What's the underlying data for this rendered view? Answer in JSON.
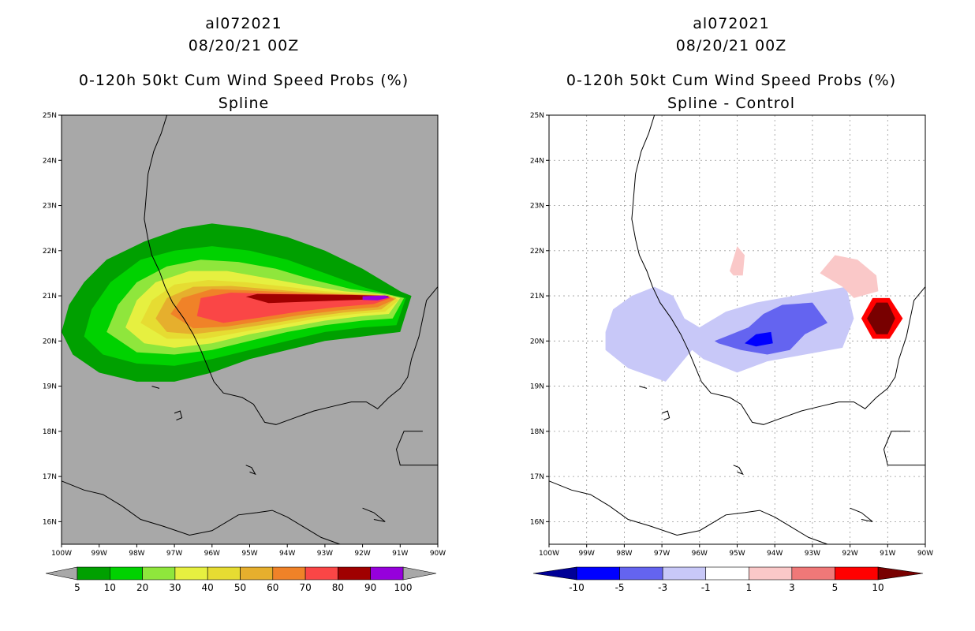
{
  "panels": [
    {
      "storm_id": "al072021",
      "datetime": "08/20/21 00Z",
      "product": "0-120h 50kt Cum Wind Speed Probs (%)",
      "subtitle": "Spline"
    },
    {
      "storm_id": "al072021",
      "datetime": "08/20/21 00Z",
      "product": "0-120h 50kt Cum Wind Speed Probs (%)",
      "subtitle": "Spline - Control"
    }
  ],
  "chart_data": [
    {
      "type": "heatmap",
      "title": "0-120h 50kt Cum Wind Speed Probs (%)",
      "subtitle": "Spline",
      "x_range": [
        -100,
        -90
      ],
      "y_range": [
        15.5,
        25
      ],
      "x_ticks": [
        "100W",
        "99W",
        "98W",
        "97W",
        "96W",
        "95W",
        "94W",
        "93W",
        "92W",
        "91W",
        "90W"
      ],
      "y_ticks": [
        "16N",
        "17N",
        "18N",
        "19N",
        "20N",
        "21N",
        "22N",
        "23N",
        "24N",
        "25N"
      ],
      "background_color": "#a8a8a8",
      "colorbar": {
        "labels": [
          "5",
          "10",
          "20",
          "30",
          "40",
          "50",
          "60",
          "70",
          "80",
          "90",
          "100"
        ],
        "colors": [
          "#00a000",
          "#00d200",
          "#8fe63c",
          "#e6f040",
          "#e6dc32",
          "#e6af2d",
          "#f08228",
          "#fa4646",
          "#a00000",
          "#9600dc"
        ]
      },
      "contours": [
        {
          "level": 5,
          "color": "#00a000",
          "points": [
            [
              -100.0,
              20.2
            ],
            [
              -99.8,
              20.8
            ],
            [
              -99.4,
              21.3
            ],
            [
              -98.8,
              21.8
            ],
            [
              -97.8,
              22.2
            ],
            [
              -96.8,
              22.5
            ],
            [
              -96.0,
              22.6
            ],
            [
              -95.0,
              22.5
            ],
            [
              -94.0,
              22.3
            ],
            [
              -93.0,
              22.0
            ],
            [
              -92.0,
              21.6
            ],
            [
              -91.0,
              21.1
            ],
            [
              -90.7,
              21.0
            ],
            [
              -91.0,
              20.2
            ],
            [
              -92.0,
              20.1
            ],
            [
              -93.0,
              20.0
            ],
            [
              -94.0,
              19.8
            ],
            [
              -95.0,
              19.6
            ],
            [
              -96.0,
              19.3
            ],
            [
              -97.0,
              19.1
            ],
            [
              -98.0,
              19.1
            ],
            [
              -99.0,
              19.3
            ],
            [
              -99.7,
              19.7
            ]
          ]
        },
        {
          "level": 10,
          "color": "#00d200",
          "points": [
            [
              -99.4,
              20.1
            ],
            [
              -99.2,
              20.7
            ],
            [
              -98.7,
              21.3
            ],
            [
              -97.9,
              21.8
            ],
            [
              -97.0,
              22.0
            ],
            [
              -96.0,
              22.1
            ],
            [
              -95.0,
              22.0
            ],
            [
              -94.0,
              21.8
            ],
            [
              -93.0,
              21.5
            ],
            [
              -92.0,
              21.2
            ],
            [
              -91.2,
              21.0
            ],
            [
              -90.85,
              20.95
            ],
            [
              -91.1,
              20.35
            ],
            [
              -92.0,
              20.3
            ],
            [
              -93.0,
              20.2
            ],
            [
              -94.0,
              20.0
            ],
            [
              -95.0,
              19.8
            ],
            [
              -96.0,
              19.6
            ],
            [
              -97.0,
              19.45
            ],
            [
              -98.0,
              19.5
            ],
            [
              -98.9,
              19.7
            ]
          ]
        },
        {
          "level": 20,
          "color": "#8fe63c",
          "points": [
            [
              -98.8,
              20.2
            ],
            [
              -98.5,
              20.8
            ],
            [
              -98.0,
              21.3
            ],
            [
              -97.2,
              21.65
            ],
            [
              -96.3,
              21.8
            ],
            [
              -95.3,
              21.75
            ],
            [
              -94.3,
              21.6
            ],
            [
              -93.3,
              21.35
            ],
            [
              -92.3,
              21.15
            ],
            [
              -91.4,
              21.05
            ],
            [
              -90.9,
              20.95
            ],
            [
              -91.2,
              20.5
            ],
            [
              -92.0,
              20.45
            ],
            [
              -93.0,
              20.35
            ],
            [
              -94.0,
              20.2
            ],
            [
              -95.0,
              20.0
            ],
            [
              -96.0,
              19.8
            ],
            [
              -97.0,
              19.7
            ],
            [
              -98.0,
              19.75
            ]
          ]
        },
        {
          "level": 30,
          "color": "#e6f040",
          "points": [
            [
              -98.3,
              20.3
            ],
            [
              -98.0,
              20.9
            ],
            [
              -97.5,
              21.3
            ],
            [
              -96.6,
              21.55
            ],
            [
              -95.6,
              21.55
            ],
            [
              -94.6,
              21.4
            ],
            [
              -93.6,
              21.25
            ],
            [
              -92.5,
              21.1
            ],
            [
              -91.5,
              21.03
            ],
            [
              -91.0,
              20.95
            ],
            [
              -91.3,
              20.6
            ],
            [
              -92.0,
              20.55
            ],
            [
              -93.0,
              20.45
            ],
            [
              -94.0,
              20.3
            ],
            [
              -95.0,
              20.15
            ],
            [
              -96.0,
              19.95
            ],
            [
              -97.0,
              19.85
            ],
            [
              -97.8,
              19.95
            ]
          ]
        },
        {
          "level": 40,
          "color": "#e6dc32",
          "points": [
            [
              -97.9,
              20.4
            ],
            [
              -97.6,
              20.9
            ],
            [
              -97.0,
              21.25
            ],
            [
              -96.1,
              21.35
            ],
            [
              -95.1,
              21.3
            ],
            [
              -94.0,
              21.2
            ],
            [
              -93.0,
              21.1
            ],
            [
              -92.0,
              21.05
            ],
            [
              -91.2,
              21.0
            ],
            [
              -91.05,
              20.9
            ],
            [
              -91.4,
              20.65
            ],
            [
              -92.2,
              20.6
            ],
            [
              -93.2,
              20.5
            ],
            [
              -94.2,
              20.35
            ],
            [
              -95.2,
              20.2
            ],
            [
              -96.2,
              20.05
            ],
            [
              -97.2,
              20.05
            ]
          ]
        },
        {
          "level": 50,
          "color": "#e6af2d",
          "points": [
            [
              -97.5,
              20.5
            ],
            [
              -97.2,
              20.95
            ],
            [
              -96.5,
              21.2
            ],
            [
              -95.5,
              21.22
            ],
            [
              -94.5,
              21.15
            ],
            [
              -93.5,
              21.08
            ],
            [
              -92.5,
              21.04
            ],
            [
              -91.6,
              21.02
            ],
            [
              -91.1,
              20.95
            ],
            [
              -91.5,
              20.7
            ],
            [
              -92.5,
              20.63
            ],
            [
              -93.5,
              20.52
            ],
            [
              -94.5,
              20.38
            ],
            [
              -95.5,
              20.25
            ],
            [
              -96.5,
              20.15
            ],
            [
              -97.2,
              20.2
            ]
          ]
        },
        {
          "level": 60,
          "color": "#f08228",
          "points": [
            [
              -97.1,
              20.6
            ],
            [
              -96.8,
              20.95
            ],
            [
              -96.0,
              21.15
            ],
            [
              -95.0,
              21.12
            ],
            [
              -94.0,
              21.08
            ],
            [
              -93.0,
              21.04
            ],
            [
              -92.0,
              21.02
            ],
            [
              -91.3,
              21.0
            ],
            [
              -91.15,
              20.92
            ],
            [
              -91.6,
              20.75
            ],
            [
              -92.6,
              20.68
            ],
            [
              -93.6,
              20.58
            ],
            [
              -94.6,
              20.45
            ],
            [
              -95.6,
              20.32
            ],
            [
              -96.5,
              20.28
            ]
          ]
        },
        {
          "level": 70,
          "color": "#fa4646",
          "points": [
            [
              -96.4,
              20.55
            ],
            [
              -96.3,
              20.95
            ],
            [
              -95.5,
              21.07
            ],
            [
              -94.5,
              21.05
            ],
            [
              -93.5,
              21.03
            ],
            [
              -92.5,
              21.02
            ],
            [
              -91.6,
              21.0
            ],
            [
              -91.25,
              20.95
            ],
            [
              -91.7,
              20.82
            ],
            [
              -92.7,
              20.75
            ],
            [
              -93.7,
              20.65
            ],
            [
              -94.7,
              20.52
            ],
            [
              -95.7,
              20.4
            ]
          ]
        },
        {
          "level": 80,
          "color": "#a00000",
          "points": [
            [
              -95.1,
              20.98
            ],
            [
              -94.8,
              21.04
            ],
            [
              -93.5,
              21.03
            ],
            [
              -92.3,
              21.02
            ],
            [
              -91.3,
              21.0
            ],
            [
              -91.5,
              20.93
            ],
            [
              -92.5,
              20.9
            ],
            [
              -93.5,
              20.87
            ],
            [
              -94.5,
              20.84
            ]
          ]
        },
        {
          "level": 90,
          "color": "#9600dc",
          "points": [
            [
              -92.0,
              20.99
            ],
            [
              -91.4,
              21.01
            ],
            [
              -91.28,
              20.96
            ],
            [
              -91.6,
              20.9
            ],
            [
              -92.0,
              20.91
            ]
          ]
        }
      ]
    },
    {
      "type": "heatmap",
      "title": "0-120h 50kt Cum Wind Speed Probs (%)",
      "subtitle": "Spline - Control",
      "x_range": [
        -100,
        -90
      ],
      "y_range": [
        15.5,
        25
      ],
      "x_ticks": [
        "100W",
        "99W",
        "98W",
        "97W",
        "96W",
        "95W",
        "94W",
        "93W",
        "92W",
        "91W",
        "90W"
      ],
      "y_ticks": [
        "16N",
        "17N",
        "18N",
        "19N",
        "20N",
        "21N",
        "22N",
        "23N",
        "24N",
        "25N"
      ],
      "background_color": "#ffffff",
      "grid": true,
      "colorbar": {
        "labels": [
          "-10",
          "-5",
          "-3",
          "-1",
          "1",
          "3",
          "5",
          "10"
        ],
        "colors": [
          "#000096",
          "#0000ff",
          "#6464f0",
          "#c8c8f8",
          "#ffffff",
          "#fac8c8",
          "#f07878",
          "#ff0000",
          "#780000"
        ]
      },
      "contours": [
        {
          "level": -1,
          "color": "#c8c8f8",
          "points": [
            [
              -98.5,
              20.2
            ],
            [
              -98.3,
              20.7
            ],
            [
              -97.8,
              21.0
            ],
            [
              -97.2,
              21.2
            ],
            [
              -96.7,
              21.0
            ],
            [
              -96.4,
              20.5
            ],
            [
              -96.0,
              20.3
            ],
            [
              -95.3,
              20.65
            ],
            [
              -94.5,
              20.85
            ],
            [
              -93.5,
              21.0
            ],
            [
              -92.1,
              21.2
            ],
            [
              -91.9,
              20.5
            ],
            [
              -92.2,
              19.85
            ],
            [
              -93.2,
              19.7
            ],
            [
              -94.2,
              19.55
            ],
            [
              -95.0,
              19.3
            ],
            [
              -95.9,
              19.6
            ],
            [
              -96.2,
              19.8
            ],
            [
              -96.9,
              19.1
            ],
            [
              -97.9,
              19.4
            ],
            [
              -98.5,
              19.8
            ]
          ]
        },
        {
          "level": -3,
          "color": "#6464f0",
          "points": [
            [
              -95.6,
              20.0
            ],
            [
              -95.3,
              20.1
            ],
            [
              -94.7,
              20.3
            ],
            [
              -94.3,
              20.6
            ],
            [
              -93.8,
              20.8
            ],
            [
              -93.0,
              20.85
            ],
            [
              -92.6,
              20.4
            ],
            [
              -93.2,
              20.15
            ],
            [
              -93.6,
              19.8
            ],
            [
              -94.2,
              19.7
            ],
            [
              -94.9,
              19.8
            ],
            [
              -95.5,
              19.95
            ]
          ]
        },
        {
          "level": -5,
          "color": "#0000ff",
          "points": [
            [
              -94.8,
              19.95
            ],
            [
              -94.5,
              20.15
            ],
            [
              -94.1,
              20.2
            ],
            [
              -94.05,
              19.95
            ],
            [
              -94.5,
              19.88
            ]
          ]
        },
        {
          "level": 1,
          "color": "#fac8c8",
          "points": [
            [
              -95.2,
              21.55
            ],
            [
              -95.0,
              22.1
            ],
            [
              -94.8,
              21.9
            ],
            [
              -94.85,
              21.45
            ],
            [
              -95.1,
              21.45
            ]
          ]
        },
        {
          "level": 1,
          "color": "#fac8c8",
          "points": [
            [
              -92.8,
              21.5
            ],
            [
              -92.4,
              21.9
            ],
            [
              -91.8,
              21.8
            ],
            [
              -91.3,
              21.45
            ],
            [
              -91.25,
              21.1
            ],
            [
              -91.9,
              20.95
            ],
            [
              -92.2,
              21.2
            ]
          ]
        },
        {
          "level": 5,
          "color": "#ff0000",
          "points": [
            [
              -91.7,
              20.5
            ],
            [
              -91.4,
              20.95
            ],
            [
              -90.95,
              20.95
            ],
            [
              -90.6,
              20.5
            ],
            [
              -90.95,
              20.05
            ],
            [
              -91.4,
              20.05
            ]
          ]
        },
        {
          "level": 10,
          "color": "#780000",
          "points": [
            [
              -91.55,
              20.5
            ],
            [
              -91.3,
              20.85
            ],
            [
              -91.0,
              20.85
            ],
            [
              -90.8,
              20.5
            ],
            [
              -91.0,
              20.15
            ],
            [
              -91.3,
              20.15
            ]
          ]
        }
      ]
    }
  ]
}
